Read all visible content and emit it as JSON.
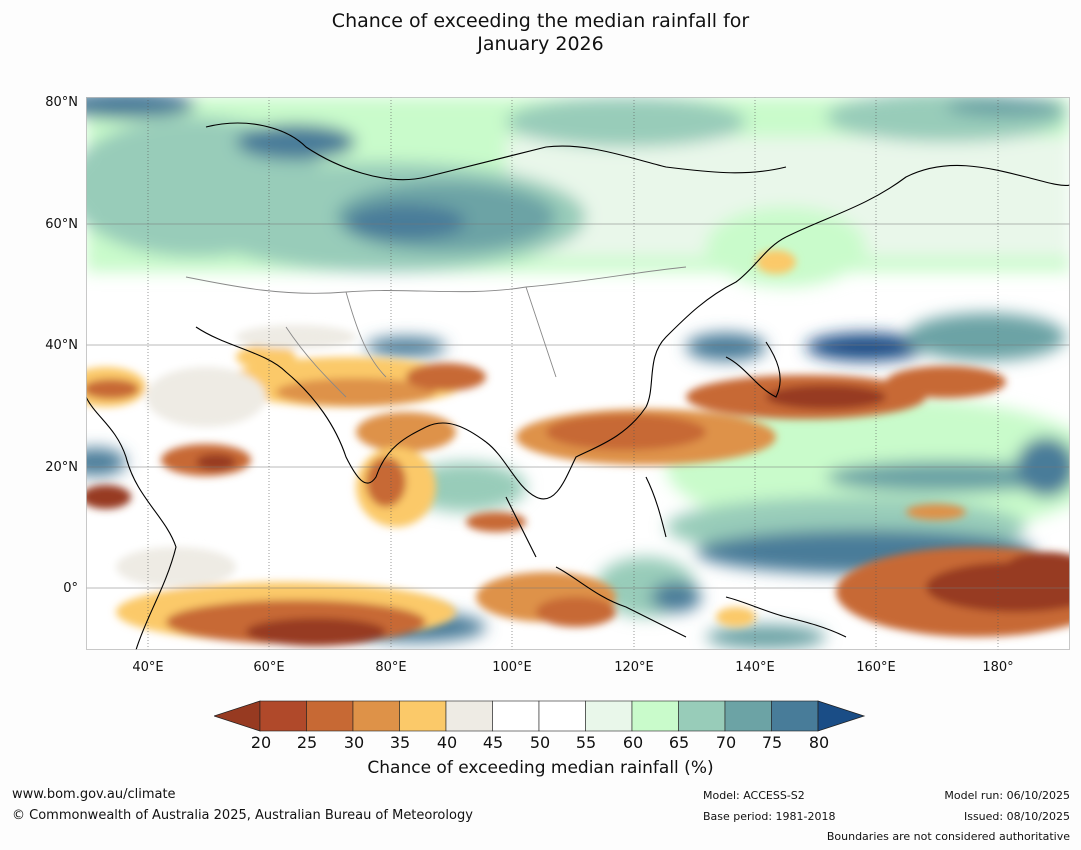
{
  "title": {
    "line1": "Chance of exceeding the median rainfall for",
    "line2": "January 2026"
  },
  "axes": {
    "lat_labels": [
      "80°N",
      "60°N",
      "40°N",
      "20°N",
      "0°"
    ],
    "lon_labels": [
      "40°E",
      "60°E",
      "80°E",
      "100°E",
      "120°E",
      "140°E",
      "160°E",
      "180°"
    ]
  },
  "colorbar": {
    "ticks": [
      "20",
      "25",
      "30",
      "35",
      "40",
      "45",
      "50",
      "55",
      "60",
      "65",
      "70",
      "75",
      "80"
    ],
    "colors": [
      "#973a21",
      "#b0492a",
      "#c76934",
      "#de9248",
      "#fbc969",
      "#eeebe4",
      "#ffffff",
      "#ffffff",
      "#e9f7ea",
      "#c9fbcb",
      "#98ccb9",
      "#6ca3a5",
      "#487c99",
      "#1a4d86"
    ],
    "label": "Chance of exceeding median rainfall (%)"
  },
  "footer": {
    "website": "www.bom.gov.au/climate",
    "copyright": "© Commonwealth of Australia 2025, Australian Bureau of Meteorology",
    "model": "Model: ACCESS-S2",
    "base_period": "Base period: 1981-2018",
    "model_run": "Model run: 06/10/2025",
    "issued": "Issued: 08/10/2025",
    "boundaries": "Boundaries are not considered authoritative"
  }
}
